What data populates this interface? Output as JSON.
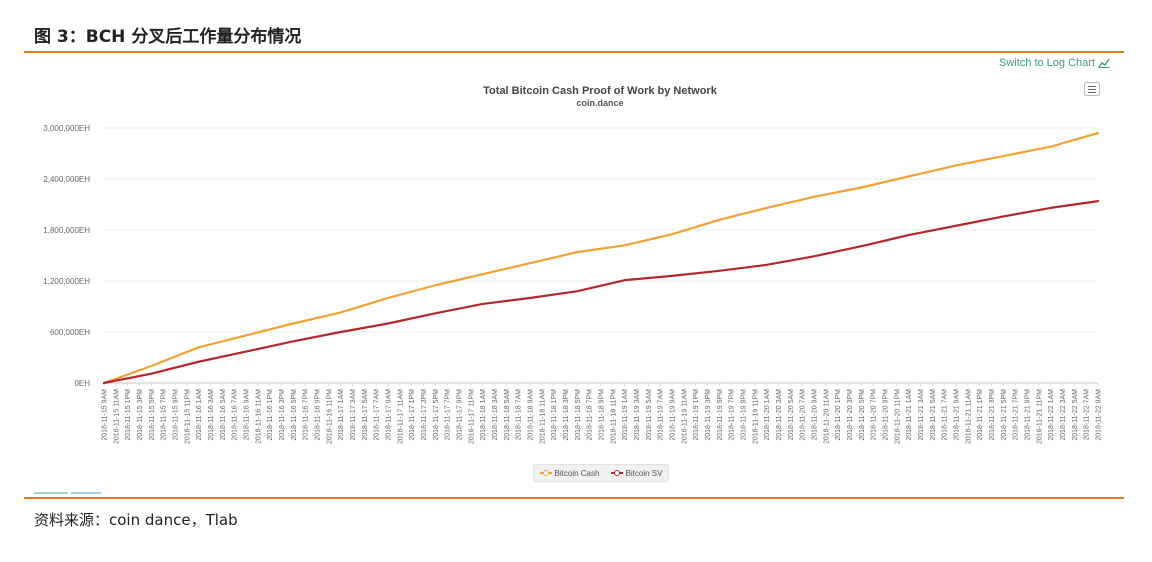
{
  "page": {
    "figure_title": "图 3：BCH 分叉后工作量分布情况",
    "source_note": "资料来源：coin dance，Tlab",
    "switch_link": "Switch to Log Chart"
  },
  "chart_data": {
    "type": "line",
    "title": "Total Bitcoin Cash Proof of Work by Network",
    "subtitle": "coin.dance",
    "y_tick_labels": [
      "0EH",
      "600,000EH",
      "1,200,000EH",
      "1,800,000EH",
      "2,400,000EH",
      "3,000,000EH"
    ],
    "y_ticks": [
      0,
      600000,
      1200000,
      1800000,
      2400000,
      3000000
    ],
    "ylim": [
      0,
      3000000
    ],
    "x_tick_labels": [
      "2018-11-15 9AM",
      "2018-11-15 11AM",
      "2018-11-15 1PM",
      "2018-11-15 3PM",
      "2018-11-15 5PM",
      "2018-11-15 7PM",
      "2018-11-15 9PM",
      "2018-11-15 11PM",
      "2018-11-16 1AM",
      "2018-11-16 3AM",
      "2018-11-16 5AM",
      "2018-11-16 7AM",
      "2018-11-16 9AM",
      "2018-11-16 11AM",
      "2018-11-16 1PM",
      "2018-11-16 3PM",
      "2018-11-16 5PM",
      "2018-11-16 7PM",
      "2018-11-16 9PM",
      "2018-11-16 11PM",
      "2018-11-17 1AM",
      "2018-11-17 3AM",
      "2018-11-17 5AM",
      "2018-11-17 7AM",
      "2018-11-17 9AM",
      "2018-11-17 11AM",
      "2018-11-17 1PM",
      "2018-11-17 3PM",
      "2018-11-17 5PM",
      "2018-11-17 7PM",
      "2018-11-17 9PM",
      "2018-11-17 11PM",
      "2018-11-18 1AM",
      "2018-11-18 3AM",
      "2018-11-18 5AM",
      "2018-11-18 7AM",
      "2018-11-18 9AM",
      "2018-11-18 11AM",
      "2018-11-18 1PM",
      "2018-11-18 3PM",
      "2018-11-18 5PM",
      "2018-11-18 7PM",
      "2018-11-18 9PM",
      "2018-11-18 11PM",
      "2018-11-19 1AM",
      "2018-11-19 3AM",
      "2018-11-19 5AM",
      "2018-11-19 7AM",
      "2018-11-19 9AM",
      "2018-11-19 11AM",
      "2018-11-19 1PM",
      "2018-11-19 3PM",
      "2018-11-19 5PM",
      "2018-11-19 7PM",
      "2018-11-19 9PM",
      "2018-11-19 11PM",
      "2018-11-20 1AM",
      "2018-11-20 3AM",
      "2018-11-20 5AM",
      "2018-11-20 7AM",
      "2018-11-20 9AM",
      "2018-11-20 11AM",
      "2018-11-20 1PM",
      "2018-11-20 3PM",
      "2018-11-20 5PM",
      "2018-11-20 7PM",
      "2018-11-20 9PM",
      "2018-11-20 11PM",
      "2018-11-21 1AM",
      "2018-11-21 3AM",
      "2018-11-21 5AM",
      "2018-11-21 7AM",
      "2018-11-21 9AM",
      "2018-11-21 11AM",
      "2018-11-21 1PM",
      "2018-11-21 3PM",
      "2018-11-21 5PM",
      "2018-11-21 7PM",
      "2018-11-21 9PM",
      "2018-11-21 11PM",
      "2018-11-22 1AM",
      "2018-11-22 3AM",
      "2018-11-22 5AM",
      "2018-11-22 7AM",
      "2018-11-22 9AM"
    ],
    "series": [
      {
        "name": "Bitcoin Cash",
        "color": "#f0a235",
        "x": [
          "2018-11-15 9AM",
          "2018-11-15 5PM",
          "2018-11-16 1AM",
          "2018-11-16 9AM",
          "2018-11-16 5PM",
          "2018-11-17 1AM",
          "2018-11-17 9AM",
          "2018-11-17 5PM",
          "2018-11-18 1AM",
          "2018-11-18 9AM",
          "2018-11-18 5PM",
          "2018-11-19 1AM",
          "2018-11-19 9AM",
          "2018-11-19 5PM",
          "2018-11-20 1AM",
          "2018-11-20 9AM",
          "2018-11-20 5PM",
          "2018-11-21 1AM",
          "2018-11-21 9AM",
          "2018-11-21 5PM",
          "2018-11-22 1AM",
          "2018-11-22 9AM"
        ],
        "values": [
          0,
          200000,
          420000,
          560000,
          700000,
          830000,
          1000000,
          1150000,
          1280000,
          1410000,
          1540000,
          1620000,
          1750000,
          1920000,
          2060000,
          2190000,
          2300000,
          2430000,
          2560000,
          2670000,
          2780000,
          2940000
        ]
      },
      {
        "name": "Bitcoin SV",
        "color": "#b2282d",
        "x": [
          "2018-11-15 9AM",
          "2018-11-15 5PM",
          "2018-11-16 1AM",
          "2018-11-16 9AM",
          "2018-11-16 5PM",
          "2018-11-17 1AM",
          "2018-11-17 9AM",
          "2018-11-17 5PM",
          "2018-11-18 1AM",
          "2018-11-18 9AM",
          "2018-11-18 5PM",
          "2018-11-19 1AM",
          "2018-11-19 9AM",
          "2018-11-19 5PM",
          "2018-11-20 1AM",
          "2018-11-20 9AM",
          "2018-11-20 5PM",
          "2018-11-21 1AM",
          "2018-11-21 9AM",
          "2018-11-21 5PM",
          "2018-11-22 1AM",
          "2018-11-22 9AM"
        ],
        "values": [
          0,
          110000,
          250000,
          370000,
          490000,
          600000,
          700000,
          820000,
          930000,
          1000000,
          1080000,
          1210000,
          1260000,
          1320000,
          1390000,
          1490000,
          1610000,
          1740000,
          1850000,
          1960000,
          2060000,
          2140000
        ]
      }
    ],
    "legend_position": "bottom",
    "grid": true
  }
}
